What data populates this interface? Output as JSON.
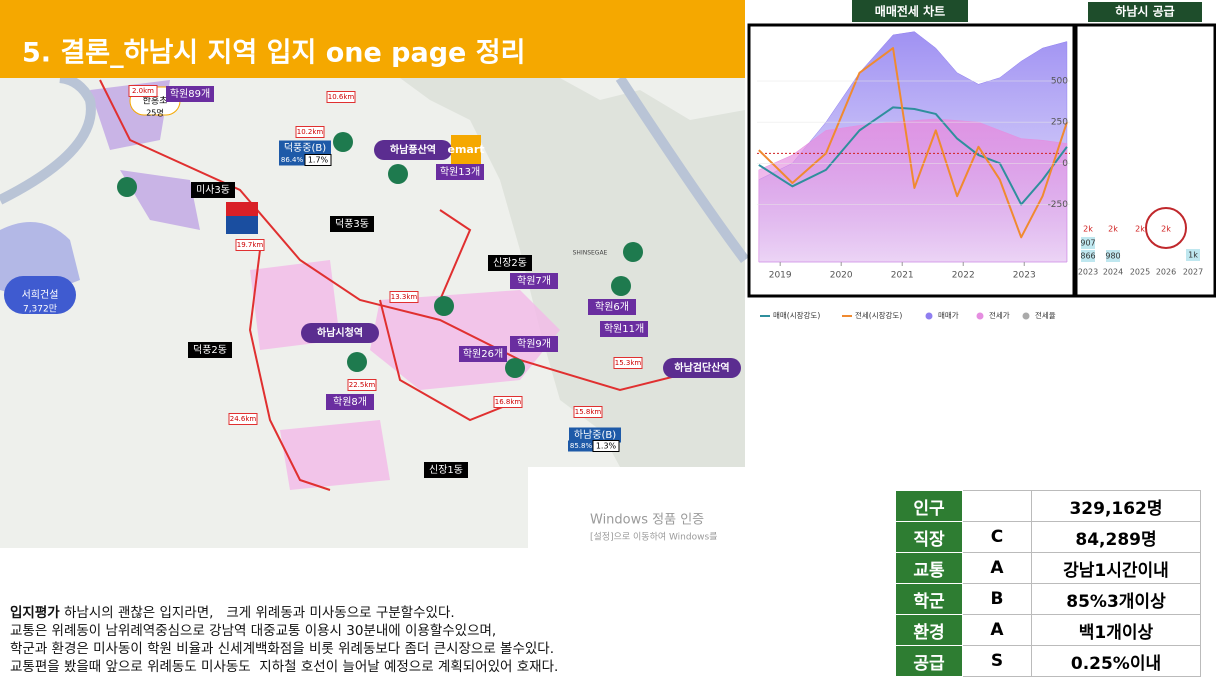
{
  "title": "5. 결론_하남시 지역 입지 one page 정리",
  "map": {
    "labels": [
      "한홍초",
      "25명",
      "학원89개",
      "덕풍중(B)",
      "86.4%",
      "1.7%",
      "하남풍산역",
      "emart",
      "학원13개",
      "미사3동",
      "덕풍3동",
      "신장2동",
      "학원7개",
      "학원6개",
      "학원11개",
      "서희건설",
      "7,372만",
      "덕풍2동",
      "하남시청역",
      "학원26개",
      "학원9개",
      "하남검단산역",
      "학원8개",
      "하남중(B)",
      "85.8%",
      "1.3%",
      "신장1동",
      "SHINSEGAE",
      "2.0km",
      "10.6km",
      "10.2km",
      "19.7km",
      "13.3km",
      "22.5km",
      "24.6km",
      "16.8km",
      "15.8km",
      "15.3km",
      "Windows 정품 인증",
      "[설정]으로 이동하여 Windows를"
    ]
  },
  "price_chart": {
    "tag": "매매전세 차트",
    "x": [
      2018.65,
      2019.2,
      2019.75,
      2020.3,
      2020.85,
      2021.2,
      2021.55,
      2021.9,
      2022.25,
      2022.6,
      2022.95,
      2023.3,
      2023.7
    ],
    "xlim": [
      2018.62,
      2023.75
    ],
    "xticks": [
      2019,
      2020,
      2021,
      2022,
      2023
    ],
    "ylim": [
      -600,
      810
    ],
    "yticks": [
      500,
      250,
      0,
      -250
    ],
    "reference_line": 60,
    "areas": [
      {
        "name": "매매가",
        "color": "#8f7ef0",
        "values": [
          -100,
          0,
          250,
          550,
          780,
          800,
          700,
          550,
          480,
          520,
          620,
          700,
          740
        ]
      },
      {
        "name": "전세가",
        "color": "#e58ee0",
        "values": [
          -40,
          50,
          200,
          230,
          250,
          260,
          270,
          260,
          250,
          200,
          150,
          140,
          120
        ]
      }
    ],
    "lines": [
      {
        "name": "매매(시장강도)",
        "color": "#2f8f9d",
        "values": [
          -10,
          -140,
          -40,
          200,
          340,
          330,
          300,
          150,
          50,
          0,
          -250,
          -100,
          100
        ]
      },
      {
        "name": "전세(시장강도)",
        "color": "#f08a30",
        "values": [
          80,
          -120,
          60,
          550,
          700,
          -150,
          200,
          -200,
          100,
          -100,
          -450,
          -200,
          250
        ]
      }
    ],
    "extra_legend": {
      "name": "전세율",
      "color": "#aaaaaa"
    }
  },
  "supply_chart": {
    "tag": "하남시 공급",
    "columns": [
      {
        "year": "2023",
        "labels": [
          "2k",
          "907",
          "866"
        ]
      },
      {
        "year": "2024",
        "labels": [
          "2k",
          "980"
        ]
      },
      {
        "year": "2025",
        "labels": [
          "2k"
        ]
      },
      {
        "year": "2026",
        "labels": [
          "2k"
        ]
      },
      {
        "year": "2027",
        "labels": [
          "1k"
        ]
      }
    ]
  },
  "table": {
    "rows": [
      {
        "label": "인구",
        "value": "329,162명"
      },
      {
        "label": "직장",
        "grade": "C",
        "value": "84,289명"
      },
      {
        "label": "교통",
        "grade": "A",
        "value": "강남1시간이내"
      },
      {
        "label": "학군",
        "grade": "B",
        "value": "85%3개이상"
      },
      {
        "label": "환경",
        "grade": "A",
        "value": "백1개이상"
      },
      {
        "label": "공급",
        "grade": "S",
        "value": "0.25%이내"
      }
    ]
  },
  "text": {
    "heading": "입지평가",
    "first": "하남시의 괜찮은 입지라면,   크게 위례동과 미사동으로 구분할수있다.",
    "lines": [
      "교통은 위례동이 남위례역중심으로 강남역 대중교통 이용시 30분내에 이용할수있으며,",
      "학군과 환경은 미사동이 학원 비율과 신세계백화점을 비롯 위례동보다 좀더 큰시장으로 볼수있다.",
      "교통편을 봤을때 앞으로 위례동도 미사동도  지하철 호선이 늘어날 예정으로 계획되어있어 호재다."
    ]
  }
}
